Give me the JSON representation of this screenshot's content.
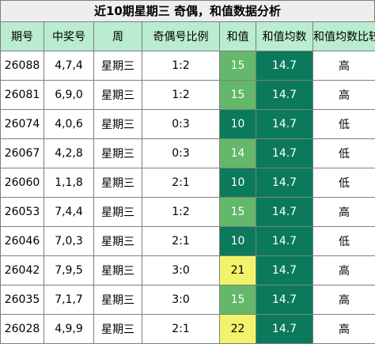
{
  "title": "近10期星期三 奇偶，和值数据分析",
  "headers": [
    "期号",
    "中奖号",
    "周",
    "奇偶号比例",
    "和值",
    "和值均数",
    "和值均数比较"
  ],
  "rows": [
    {
      "issue": "26088",
      "numbers": "4,7,4",
      "weekday": "星期三",
      "odd_even": "1:2",
      "sum": "15",
      "avg": "14.7",
      "compare": "高",
      "sum_color": "green"
    },
    {
      "issue": "26081",
      "numbers": "6,9,0",
      "weekday": "星期三",
      "odd_even": "1:2",
      "sum": "15",
      "avg": "14.7",
      "compare": "高",
      "sum_color": "green"
    },
    {
      "issue": "26074",
      "numbers": "4,0,6",
      "weekday": "星期三",
      "odd_even": "0:3",
      "sum": "10",
      "avg": "14.7",
      "compare": "低",
      "sum_color": "dark"
    },
    {
      "issue": "26067",
      "numbers": "4,2,8",
      "weekday": "星期三",
      "odd_even": "0:3",
      "sum": "14",
      "avg": "14.7",
      "compare": "低",
      "sum_color": "green"
    },
    {
      "issue": "26060",
      "numbers": "1,1,8",
      "weekday": "星期三",
      "odd_even": "2:1",
      "sum": "10",
      "avg": "14.7",
      "compare": "低",
      "sum_color": "dark"
    },
    {
      "issue": "26053",
      "numbers": "7,4,4",
      "weekday": "星期三",
      "odd_even": "1:2",
      "sum": "15",
      "avg": "14.7",
      "compare": "高",
      "sum_color": "green"
    },
    {
      "issue": "26046",
      "numbers": "7,0,3",
      "weekday": "星期三",
      "odd_even": "2:1",
      "sum": "10",
      "avg": "14.7",
      "compare": "低",
      "sum_color": "dark"
    },
    {
      "issue": "26042",
      "numbers": "7,9,5",
      "weekday": "星期三",
      "odd_even": "3:0",
      "sum": "21",
      "avg": "14.7",
      "compare": "高",
      "sum_color": "yellow"
    },
    {
      "issue": "26035",
      "numbers": "7,1,7",
      "weekday": "星期三",
      "odd_even": "3:0",
      "sum": "15",
      "avg": "14.7",
      "compare": "高",
      "sum_color": "green"
    },
    {
      "issue": "26028",
      "numbers": "4,9,9",
      "weekday": "星期三",
      "odd_even": "2:1",
      "sum": "22",
      "avg": "14.7",
      "compare": "高",
      "sum_color": "yellow"
    }
  ],
  "colors": {
    "header_bg": "#b9ecd0",
    "title_bg": "#eeeeee",
    "sum_green": "#63b86a",
    "sum_dark": "#0a7a5a",
    "sum_yellow": "#f1f46a",
    "avg_bg": "#0a7a5a"
  }
}
